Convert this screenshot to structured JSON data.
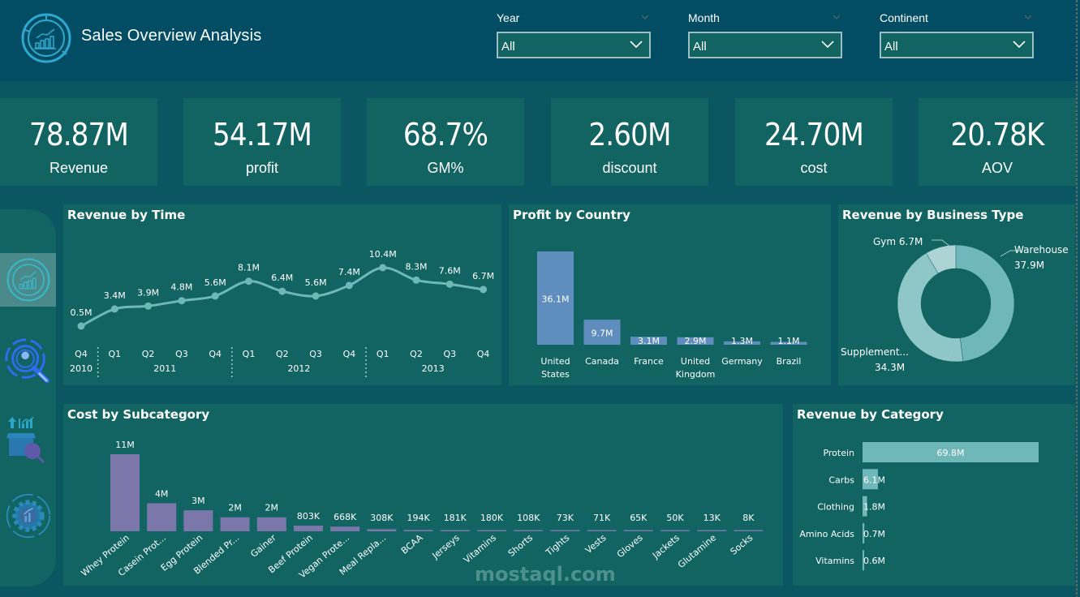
{
  "header": {
    "title": "Sales Overview Analysis",
    "logo_icon": "chart-growth-icon"
  },
  "filters": [
    {
      "label": "Year",
      "value": "All"
    },
    {
      "label": "Month",
      "value": "All"
    },
    {
      "label": "Continent",
      "value": "All"
    }
  ],
  "kpis": [
    {
      "value": "78.87M",
      "label": "Revenue"
    },
    {
      "value": "54.17M",
      "label": "profit"
    },
    {
      "value": "68.7%",
      "label": "GM%"
    },
    {
      "value": "2.60M",
      "label": "discount"
    },
    {
      "value": "24.70M",
      "label": "cost"
    },
    {
      "value": "20.78K",
      "label": "AOV"
    }
  ],
  "nav": [
    {
      "icon": "sales-overview-icon",
      "active": true
    },
    {
      "icon": "customer-search-icon",
      "active": false
    },
    {
      "icon": "product-analysis-icon",
      "active": false
    },
    {
      "icon": "operations-gear-icon",
      "active": false
    }
  ],
  "watermark": "mostaql.com",
  "colors": {
    "header_bg": "#024d64",
    "page_bg": "#0a5761",
    "card_bg": "#116462",
    "line": "#6fb8b8",
    "country_bar": "#5f8dbd",
    "subcategory_bar": "#7b77ab",
    "category_bar": "#70b7b9",
    "donut": [
      "#70b7b9",
      "#8fc6c8",
      "#acd4d5"
    ]
  },
  "chart_data": [
    {
      "id": "revenue_by_time",
      "type": "line",
      "title": "Revenue by Time",
      "x": [
        "Q4",
        "Q1",
        "Q2",
        "Q3",
        "Q4",
        "Q1",
        "Q2",
        "Q3",
        "Q4",
        "Q1",
        "Q2",
        "Q3",
        "Q4"
      ],
      "year_groups": [
        {
          "label": "2010",
          "count": 1
        },
        {
          "label": "2011",
          "count": 4
        },
        {
          "label": "2012",
          "count": 4
        },
        {
          "label": "2013",
          "count": 4
        }
      ],
      "values": [
        0.5,
        3.4,
        3.9,
        4.8,
        5.6,
        8.1,
        6.4,
        5.6,
        7.4,
        10.4,
        8.3,
        7.6,
        6.7
      ],
      "data_labels": [
        "0.5M",
        "3.4M",
        "3.9M",
        "4.8M",
        "5.6M",
        "8.1M",
        "6.4M",
        "5.6M",
        "7.4M",
        "10.4M",
        "8.3M",
        "7.6M",
        "6.7M"
      ],
      "unit": "M"
    },
    {
      "id": "profit_by_country",
      "type": "bar",
      "title": "Profit by Country",
      "categories": [
        "United States",
        "Canada",
        "France",
        "United Kingdom",
        "Germany",
        "Brazil"
      ],
      "category_lines": [
        [
          "United",
          "States"
        ],
        [
          "Canada"
        ],
        [
          "France"
        ],
        [
          "United",
          "Kingdom"
        ],
        [
          "Germany"
        ],
        [
          "Brazil"
        ]
      ],
      "values": [
        36.1,
        9.7,
        3.1,
        2.9,
        1.3,
        1.1
      ],
      "data_labels": [
        "36.1M",
        "9.7M",
        "3.1M",
        "2.9M",
        "1.3M",
        "1.1M"
      ],
      "unit": "M"
    },
    {
      "id": "revenue_by_business_type",
      "type": "pie",
      "title": "Revenue by Business Type",
      "categories": [
        "Warehouse",
        "Supplement...",
        "Gym"
      ],
      "values": [
        37.9,
        34.3,
        6.7
      ],
      "data_labels": [
        "37.9M",
        "34.3M",
        "6.7M"
      ],
      "unit": "M"
    },
    {
      "id": "cost_by_subcategory",
      "type": "bar",
      "title": "Cost by Subcategory",
      "categories": [
        "Whey Protein",
        "Casein Prot...",
        "Egg Protein",
        "Blended Pr...",
        "Gainer",
        "Beef Protein",
        "Vegan Prote...",
        "Meal Repla...",
        "BCAA",
        "Jerseys",
        "Vitamins",
        "Shorts",
        "Tights",
        "Vests",
        "Gloves",
        "Jackets",
        "Glutamine",
        "Socks"
      ],
      "values": [
        11000,
        4000,
        3000,
        2000,
        2000,
        803,
        668,
        308,
        194,
        181,
        180,
        108,
        73,
        71,
        65,
        50,
        13,
        8
      ],
      "data_labels": [
        "11M",
        "4M",
        "3M",
        "2M",
        "2M",
        "803K",
        "668K",
        "308K",
        "194K",
        "181K",
        "180K",
        "108K",
        "73K",
        "71K",
        "65K",
        "50K",
        "13K",
        "8K"
      ],
      "unit": "K"
    },
    {
      "id": "revenue_by_category",
      "type": "bar",
      "orientation": "horizontal",
      "title": "Revenue by Category",
      "categories": [
        "Protein",
        "Carbs",
        "Clothing",
        "Amino Acids",
        "Vitamins"
      ],
      "values": [
        69.8,
        6.1,
        1.8,
        0.7,
        0.6
      ],
      "data_labels": [
        "69.8M",
        "6.1M",
        "1.8M",
        "0.7M",
        "0.6M"
      ],
      "unit": "M"
    }
  ]
}
